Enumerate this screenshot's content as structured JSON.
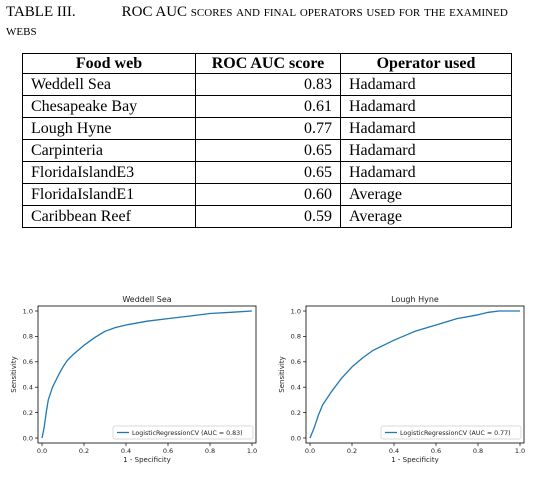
{
  "caption": {
    "number": "TABLE III.",
    "text": "ROC AUC scores and final operators used for the examined webs"
  },
  "table": {
    "headers": [
      "Food web",
      "ROC AUC score",
      "Operator used"
    ],
    "rows": [
      {
        "food_web": "Weddell Sea",
        "score": "0.83",
        "operator": "Hadamard"
      },
      {
        "food_web": "Chesapeake Bay",
        "score": "0.61",
        "operator": "Hadamard"
      },
      {
        "food_web": "Lough Hyne",
        "score": "0.77",
        "operator": "Hadamard"
      },
      {
        "food_web": "Carpinteria",
        "score": "0.65",
        "operator": "Hadamard"
      },
      {
        "food_web": "FloridaIslandE3",
        "score": "0.65",
        "operator": "Hadamard"
      },
      {
        "food_web": "FloridaIslandE1",
        "score": "0.60",
        "operator": "Average"
      },
      {
        "food_web": "Caribbean Reef",
        "score": "0.59",
        "operator": "Average"
      }
    ]
  },
  "chart_data": [
    {
      "type": "line",
      "title": "Weddell Sea",
      "xlabel": "1 - Specificity",
      "ylabel": "Sensitivity",
      "xlim": [
        0.0,
        1.0
      ],
      "ylim": [
        0.0,
        1.0
      ],
      "xticks": [
        "0.0",
        "0.2",
        "0.4",
        "0.6",
        "0.8",
        "1.0"
      ],
      "yticks": [
        "0.0",
        "0.2",
        "0.4",
        "0.6",
        "0.8",
        "1.0"
      ],
      "grid": false,
      "legend_position": "bottom-right",
      "color": "#1f77b4",
      "series": [
        {
          "name": "LogisticRegressionCV (AUC = 0.83)",
          "x": [
            0.0,
            0.01,
            0.02,
            0.03,
            0.05,
            0.08,
            0.1,
            0.12,
            0.15,
            0.2,
            0.25,
            0.3,
            0.35,
            0.4,
            0.5,
            0.6,
            0.7,
            0.8,
            0.9,
            1.0
          ],
          "y": [
            0.0,
            0.08,
            0.2,
            0.3,
            0.4,
            0.5,
            0.56,
            0.61,
            0.66,
            0.73,
            0.79,
            0.84,
            0.87,
            0.89,
            0.92,
            0.94,
            0.96,
            0.98,
            0.99,
            1.0
          ]
        }
      ]
    },
    {
      "type": "line",
      "title": "Lough Hyne",
      "xlabel": "1 - Specificity",
      "ylabel": "Sensitivity",
      "xlim": [
        0.0,
        1.0
      ],
      "ylim": [
        0.0,
        1.0
      ],
      "xticks": [
        "0.0",
        "0.2",
        "0.4",
        "0.6",
        "0.8",
        "1.0"
      ],
      "yticks": [
        "0.0",
        "0.2",
        "0.4",
        "0.6",
        "0.8",
        "1.0"
      ],
      "grid": false,
      "legend_position": "bottom-right",
      "color": "#1f77b4",
      "series": [
        {
          "name": "LogisticRegressionCV (AUC = 0.77)",
          "x": [
            0.0,
            0.02,
            0.04,
            0.06,
            0.1,
            0.15,
            0.2,
            0.25,
            0.3,
            0.35,
            0.4,
            0.5,
            0.6,
            0.7,
            0.8,
            0.85,
            0.9,
            1.0
          ],
          "y": [
            0.0,
            0.08,
            0.18,
            0.26,
            0.36,
            0.47,
            0.56,
            0.63,
            0.69,
            0.73,
            0.77,
            0.84,
            0.89,
            0.94,
            0.97,
            0.99,
            1.0,
            1.0
          ]
        }
      ]
    }
  ]
}
